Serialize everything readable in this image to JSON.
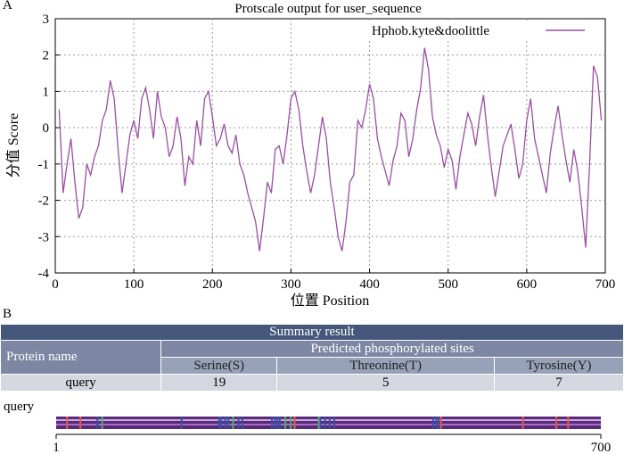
{
  "panel_a_label": "A",
  "panel_b_label": "B",
  "chart_data": {
    "type": "line",
    "title": "Protscale output for user_sequence",
    "xlabel": "位置 Position",
    "ylabel": "分值 Score",
    "xlim": [
      0,
      700
    ],
    "ylim": [
      -4,
      3
    ],
    "xticks": [
      0,
      100,
      200,
      300,
      400,
      500,
      600,
      700
    ],
    "yticks": [
      -4,
      -3,
      -2,
      -1,
      0,
      1,
      2,
      3
    ],
    "grid": true,
    "legend_position": "top-right",
    "series_color": "#9a4fa0",
    "series": [
      {
        "name": "Hphob.kyte&doolittle",
        "x": [
          5,
          10,
          15,
          20,
          25,
          30,
          35,
          40,
          45,
          50,
          55,
          60,
          65,
          70,
          75,
          80,
          85,
          90,
          95,
          100,
          105,
          110,
          115,
          120,
          125,
          130,
          135,
          140,
          145,
          150,
          155,
          160,
          165,
          170,
          175,
          180,
          185,
          190,
          195,
          200,
          205,
          210,
          215,
          220,
          225,
          230,
          235,
          240,
          245,
          250,
          255,
          260,
          265,
          270,
          275,
          280,
          285,
          290,
          295,
          300,
          305,
          310,
          315,
          320,
          325,
          330,
          335,
          340,
          345,
          350,
          355,
          360,
          365,
          370,
          375,
          380,
          385,
          390,
          395,
          400,
          405,
          410,
          415,
          420,
          425,
          430,
          435,
          440,
          445,
          450,
          455,
          460,
          465,
          470,
          475,
          480,
          485,
          490,
          495,
          500,
          505,
          510,
          515,
          520,
          525,
          530,
          535,
          540,
          545,
          550,
          555,
          560,
          565,
          570,
          575,
          580,
          585,
          590,
          595,
          600,
          605,
          610,
          615,
          620,
          625,
          630,
          635,
          640,
          645,
          650,
          655,
          660,
          665,
          670,
          675,
          680,
          685,
          690,
          695
        ],
        "y": [
          0.5,
          -1.8,
          -1.0,
          -0.3,
          -1.5,
          -2.5,
          -2.2,
          -1.0,
          -1.3,
          -0.8,
          -0.5,
          0.2,
          0.5,
          1.3,
          0.8,
          -0.6,
          -1.8,
          -1.0,
          -0.2,
          0.2,
          -0.3,
          0.8,
          1.1,
          0.5,
          -0.3,
          1.0,
          0.3,
          0.0,
          -0.8,
          -0.5,
          0.3,
          -0.3,
          -1.6,
          -0.8,
          -1.0,
          0.2,
          -0.5,
          0.8,
          1.0,
          0.3,
          -0.5,
          -0.3,
          0.1,
          -0.5,
          -0.7,
          -0.2,
          -1.0,
          -1.3,
          -1.8,
          -2.2,
          -2.6,
          -3.4,
          -2.5,
          -1.5,
          -1.8,
          -0.6,
          -0.5,
          -1.0,
          -0.2,
          0.8,
          1.0,
          0.5,
          -0.5,
          -1.2,
          -1.8,
          -1.3,
          -0.5,
          0.3,
          -0.3,
          -1.5,
          -2.2,
          -3.0,
          -3.4,
          -2.6,
          -1.5,
          -1.3,
          0.2,
          0.0,
          0.5,
          1.2,
          0.8,
          -0.3,
          -0.8,
          -1.2,
          -1.6,
          -0.9,
          -0.5,
          0.4,
          0.2,
          -0.8,
          -0.3,
          0.5,
          1.1,
          2.2,
          1.6,
          0.3,
          -0.2,
          -0.5,
          -1.1,
          -0.6,
          -0.9,
          -1.7,
          -0.8,
          -0.2,
          0.4,
          0.1,
          -0.5,
          0.3,
          0.9,
          -0.2,
          -1.1,
          -1.9,
          -1.2,
          -0.5,
          -0.2,
          0.1,
          -0.6,
          -1.4,
          -1.0,
          0.2,
          0.8,
          -0.3,
          -0.8,
          -1.3,
          -1.8,
          -0.7,
          0.0,
          0.6,
          -0.2,
          -0.9,
          -1.5,
          -0.6,
          -1.2,
          -2.2,
          -3.3,
          -1.0,
          1.7,
          1.4,
          0.2
        ]
      }
    ]
  },
  "table": {
    "caption": "Summary result",
    "protein_name_header": "Protein name",
    "predicted_header": "Predicted phosphorylated sites",
    "columns": [
      "Serine(S)",
      "Threonine(T)",
      "Tyrosine(Y)"
    ],
    "row": {
      "name": "query",
      "values": [
        "19",
        "5",
        "7"
      ]
    }
  },
  "track": {
    "label": "query",
    "start_label": "1",
    "end_label": "700",
    "length": 700,
    "marker_colors": {
      "serine": "#3a4da3",
      "threonine": "#4caf6a",
      "tyrosine": "#e8584c"
    },
    "serine_positions": [
      54,
      162,
      210,
      213,
      218,
      222,
      235,
      240,
      278,
      282,
      285,
      288,
      340,
      346,
      352,
      358,
      485,
      489,
      492
    ],
    "threonine_positions": [
      60,
      228,
      295,
      302,
      338
    ],
    "tyrosine_positions": [
      15,
      32,
      307,
      495,
      600,
      643,
      658
    ]
  }
}
